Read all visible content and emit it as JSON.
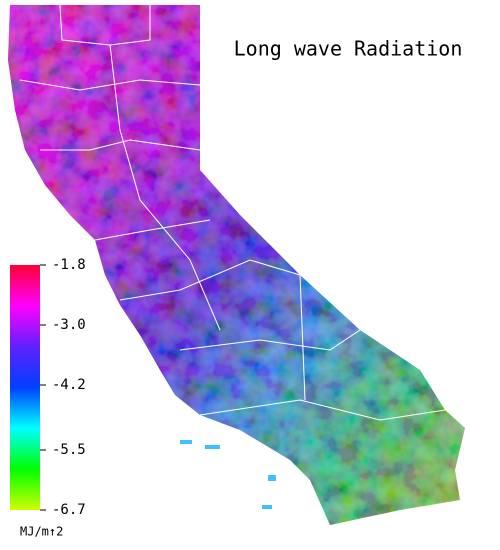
{
  "title": "Long wave Radiation",
  "colorbar": {
    "lim": [
      -1.8,
      -6.7
    ],
    "ticks": [
      -1.8,
      {
        "value": -3,
        "label": "-3.0"
      },
      -4.2,
      -5.5,
      -6.7
    ],
    "colors": [
      "#ff0033",
      "#ff00ff",
      "#6020ff",
      "#0040ff",
      "#00ffff",
      "#00ff00",
      "#ccff00"
    ],
    "unit": "MJ/m↑2"
  }
}
